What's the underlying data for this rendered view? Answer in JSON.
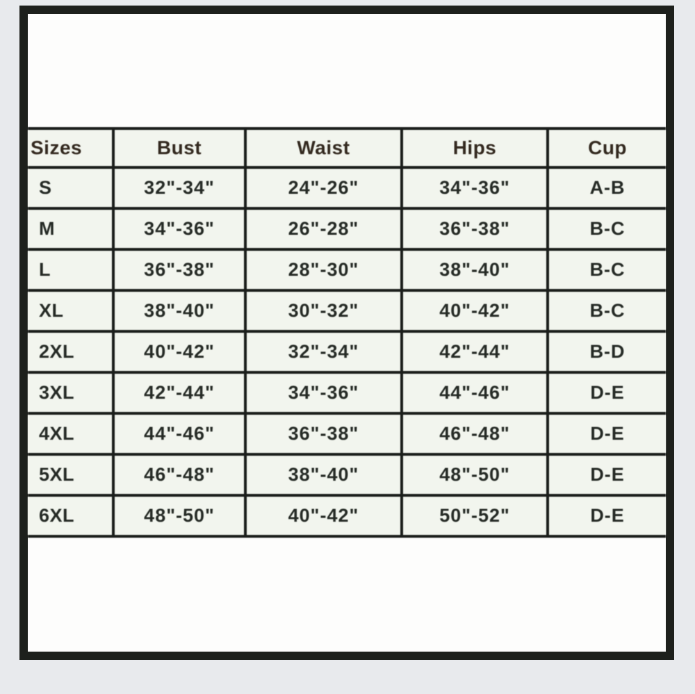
{
  "colors": {
    "outer_background": "#e8eaed",
    "frame_black": "#1d201c",
    "inner_white": "#fdfdfc",
    "cell_background": "#f2f5ee",
    "grid_line": "#1b1e1b",
    "header_text": "#33291f",
    "body_text": "#252a25"
  },
  "size_chart": {
    "headers": [
      "Sizes",
      "Bust",
      "Waist",
      "Hips",
      "Cup"
    ],
    "rows": [
      [
        "S",
        "32\"-34\"",
        "24\"-26\"",
        "34\"-36\"",
        "A-B"
      ],
      [
        "M",
        "34\"-36\"",
        "26\"-28\"",
        "36\"-38\"",
        "B-C"
      ],
      [
        "L",
        "36\"-38\"",
        "28\"-30\"",
        "38\"-40\"",
        "B-C"
      ],
      [
        "XL",
        "38\"-40\"",
        "30\"-32\"",
        "40\"-42\"",
        "B-C"
      ],
      [
        "2XL",
        "40\"-42\"",
        "32\"-34\"",
        "42\"-44\"",
        "B-D"
      ],
      [
        "3XL",
        "42\"-44\"",
        "34\"-36\"",
        "44\"-46\"",
        "D-E"
      ],
      [
        "4XL",
        "44\"-46\"",
        "36\"-38\"",
        "46\"-48\"",
        "D-E"
      ],
      [
        "5XL",
        "46\"-48\"",
        "38\"-40\"",
        "48\"-50\"",
        "D-E"
      ]
    ],
    "last_row": [
      "6XL",
      "48\"-50\"",
      "40\"-42\"",
      "50\"-52\"",
      "D-E"
    ]
  }
}
